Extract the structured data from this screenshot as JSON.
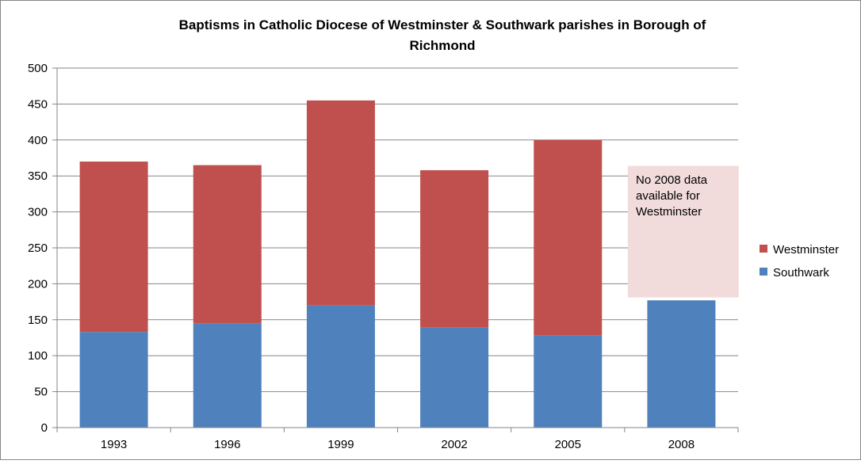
{
  "chart_data": {
    "type": "bar",
    "stacked": true,
    "title": "Baptisms in Catholic Diocese of Westminster & Southwark parishes in Borough of Richmond",
    "title_lines": [
      "Baptisms in Catholic Diocese of Westminster & Southwark parishes in Borough of",
      "Richmond"
    ],
    "categories": [
      "1993",
      "1996",
      "1999",
      "2002",
      "2005",
      "2008"
    ],
    "series": [
      {
        "name": "Southwark",
        "color": "#4F81BD",
        "values": [
          133,
          145,
          170,
          139,
          128,
          177
        ]
      },
      {
        "name": "Westminster",
        "color": "#C0504D",
        "values": [
          237,
          220,
          285,
          219,
          272,
          null
        ]
      }
    ],
    "ylim": [
      0,
      500
    ],
    "yticks": [
      "0",
      "50",
      "100",
      "150",
      "200",
      "250",
      "300",
      "350",
      "400",
      "450",
      "500"
    ],
    "grid": true,
    "legend_position": "right",
    "legend": [
      "Westminster",
      "Southwark"
    ],
    "annotation": {
      "lines": [
        "No 2008 data",
        "available for",
        "Westminster"
      ],
      "background": "#F2DCDB",
      "y_range": [
        181,
        364
      ]
    }
  }
}
